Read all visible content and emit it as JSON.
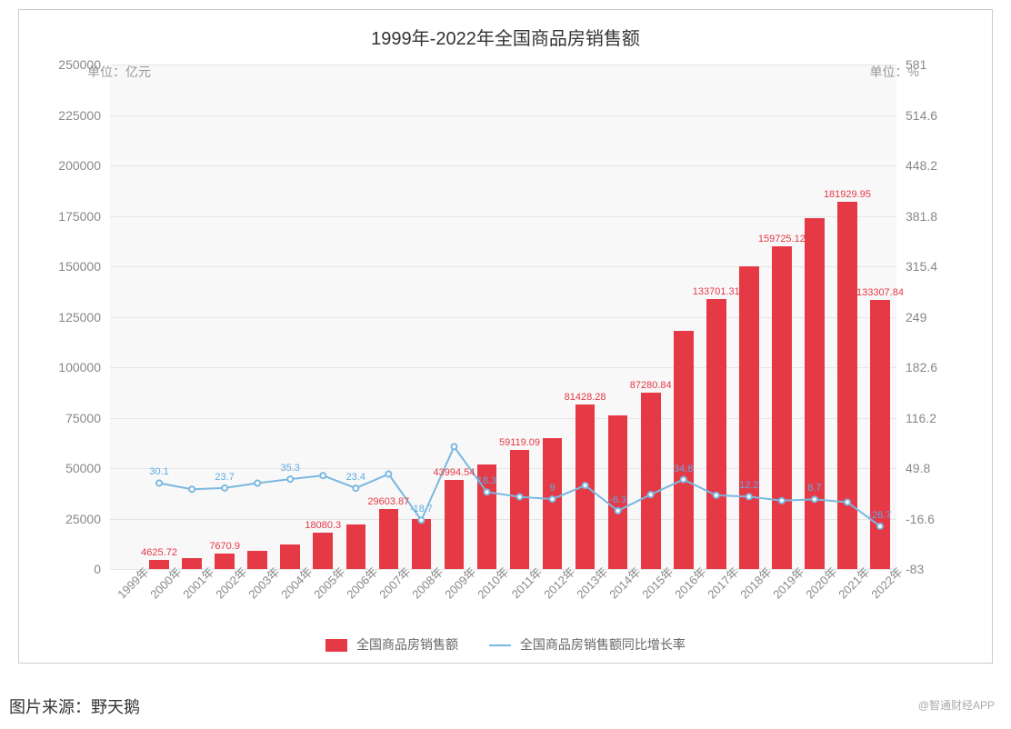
{
  "chart": {
    "title": "1999年-2022年全国商品房销售额",
    "unit_left": "单位：亿元",
    "unit_right": "单位：%",
    "background_color": "#f8f8f8",
    "border_color": "#cccccc",
    "grid_color": "#e5e5e5",
    "bar_color": "#e63946",
    "line_color": "#7ab8e0",
    "text_color": "#888888",
    "title_fontsize": 20,
    "tick_fontsize": 14,
    "label_fontsize": 11,
    "y_left": {
      "min": 0,
      "max": 250000,
      "ticks": [
        0,
        25000,
        50000,
        75000,
        100000,
        125000,
        150000,
        175000,
        200000,
        225000,
        250000
      ]
    },
    "y_right": {
      "min": -83,
      "max": 581,
      "ticks": [
        -83,
        -16.6,
        49.8,
        116.2,
        182.6,
        249,
        315.4,
        381.8,
        448.2,
        514.6,
        581
      ]
    },
    "categories": [
      "1999年",
      "2000年",
      "2001年",
      "2002年",
      "2003年",
      "2004年",
      "2005年",
      "2006年",
      "2007年",
      "2008年",
      "2009年",
      "2010年",
      "2011年",
      "2012年",
      "2013年",
      "2014年",
      "2015年",
      "2016年",
      "2017年",
      "2018年",
      "2019年",
      "2020年",
      "2021年",
      "2022年"
    ],
    "bars": {
      "name": "全国商品房销售额",
      "values": [
        null,
        4625.72,
        5500,
        7670.9,
        9000,
        12000,
        18080.3,
        22000,
        29603.87,
        25000,
        43994.54,
        52000,
        59119.09,
        65000,
        81428.28,
        76000,
        87280.84,
        118000,
        133701.31,
        150000,
        159725.12,
        174000,
        181929.95,
        133307.84
      ],
      "show_labels": [
        false,
        true,
        false,
        true,
        false,
        false,
        true,
        false,
        true,
        false,
        true,
        false,
        true,
        false,
        true,
        false,
        true,
        false,
        true,
        false,
        true,
        false,
        true,
        true
      ]
    },
    "line": {
      "name": "全国商品房销售额同比增长率",
      "values": [
        null,
        30.1,
        22,
        23.7,
        30,
        35.3,
        40,
        23.4,
        42,
        -18.7,
        78,
        18.3,
        12,
        9,
        27,
        -6.3,
        15,
        34.8,
        14,
        12.2,
        7,
        8.7,
        5,
        -26.7
      ],
      "show_labels": [
        false,
        true,
        false,
        true,
        false,
        true,
        false,
        true,
        false,
        true,
        false,
        true,
        false,
        true,
        false,
        true,
        false,
        true,
        false,
        true,
        false,
        true,
        false,
        true
      ]
    },
    "bar_width_ratio": 0.6
  },
  "legend": {
    "bar_label": "全国商品房销售额",
    "line_label": "全国商品房销售额同比增长率"
  },
  "caption": "图片来源：野天鹅",
  "watermark": "@智通财经APP"
}
